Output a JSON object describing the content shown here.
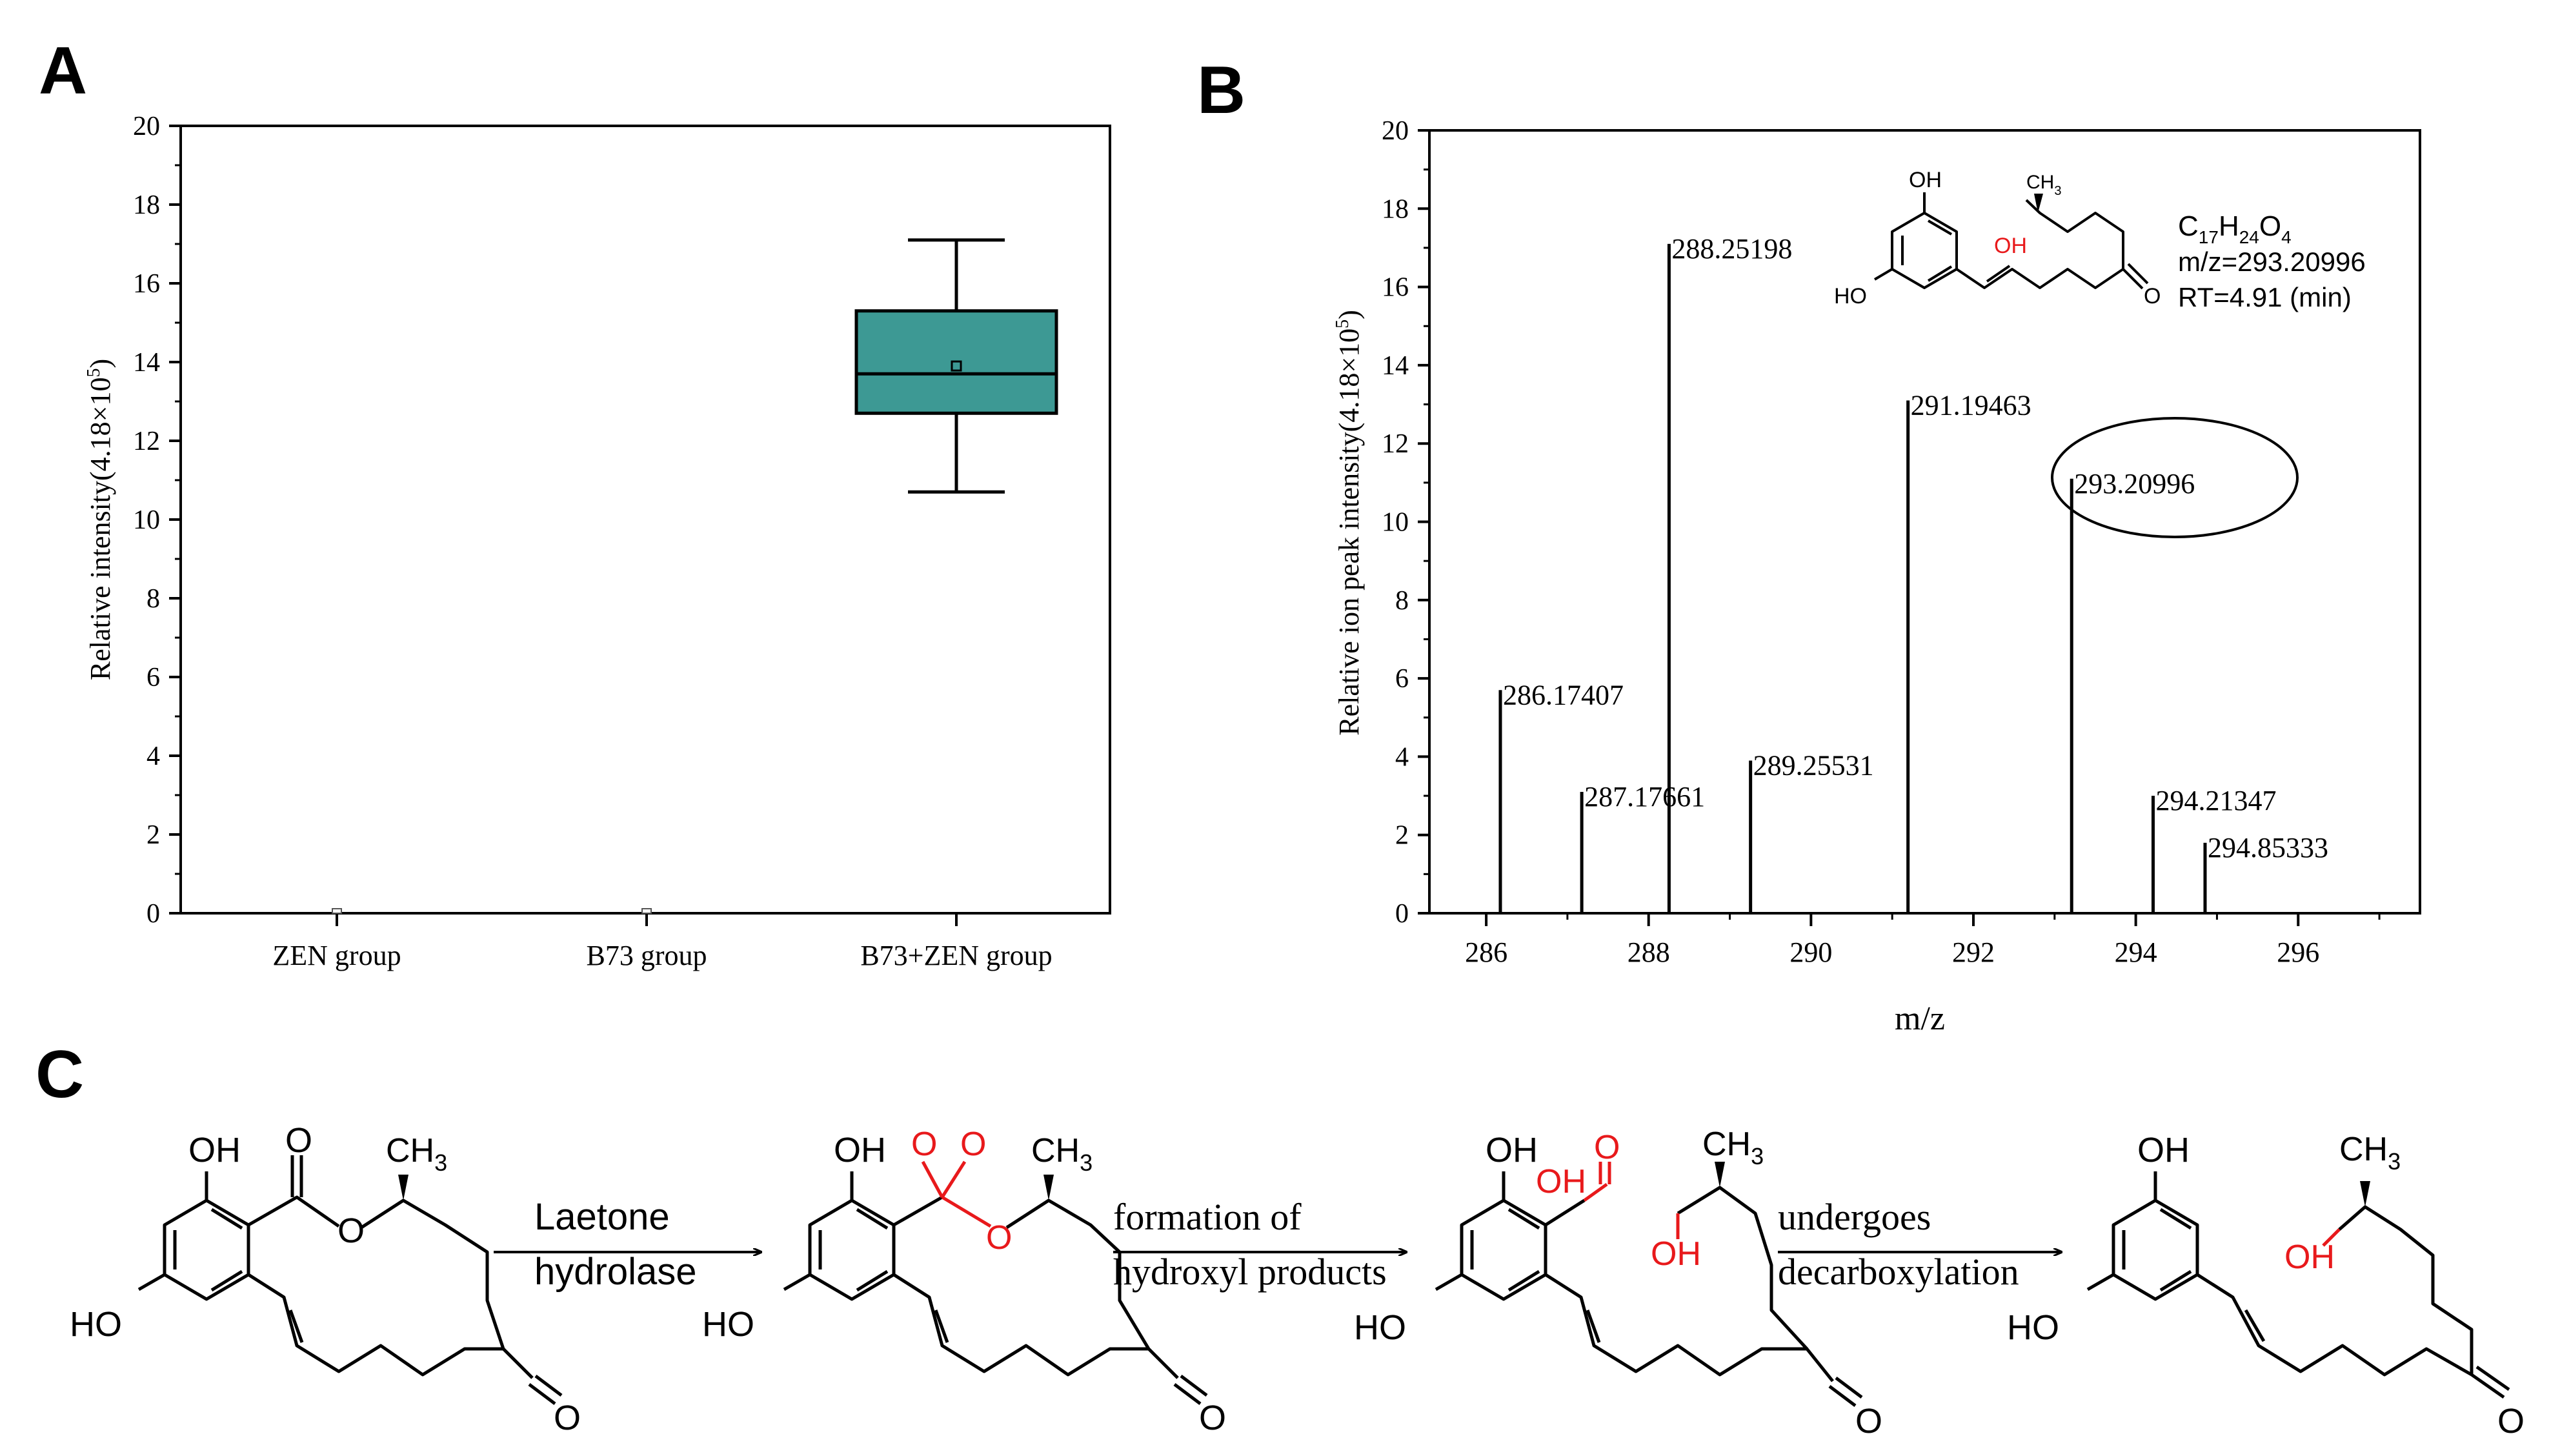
{
  "panels": {
    "a": {
      "letter": "A"
    },
    "b": {
      "letter": "B"
    },
    "c": {
      "letter": "C"
    }
  },
  "colors": {
    "box_fill": "#3d9994",
    "red": "#e8191b",
    "ink": "#000000"
  },
  "chart_data": [
    {
      "type": "box",
      "ylabel_main": "Relative intensity(4.18×10",
      "ylabel_exp": "5",
      "ylabel_tail": ")",
      "ylim": [
        0,
        20
      ],
      "y_ticks": [
        "0",
        "2",
        "4",
        "6",
        "8",
        "10",
        "12",
        "14",
        "16",
        "18",
        "20"
      ],
      "categories": [
        "ZEN group",
        "B73 group",
        "B73+ZEN group"
      ],
      "boxes": [
        {
          "min": 0,
          "q1": 0,
          "median": 0,
          "q3": 0,
          "max": 0,
          "mean": 0
        },
        {
          "min": 0,
          "q1": 0,
          "median": 0,
          "q3": 0,
          "max": 0,
          "mean": 0
        },
        {
          "min": 10.7,
          "q1": 12.7,
          "median": 13.7,
          "q3": 15.3,
          "max": 17.1,
          "mean": 13.9
        }
      ]
    },
    {
      "type": "bar",
      "xlabel": "m/z",
      "ylabel_main": "Relative ion peak intensity(4.18×10",
      "ylabel_exp": "5",
      "ylabel_tail": ")",
      "xlim": [
        285.3,
        297.5
      ],
      "ylim": [
        0,
        20
      ],
      "x_ticks": [
        "286",
        "288",
        "290",
        "292",
        "294",
        "296"
      ],
      "y_ticks": [
        "0",
        "2",
        "4",
        "6",
        "8",
        "10",
        "12",
        "14",
        "16",
        "18",
        "20"
      ],
      "peaks": [
        {
          "mz": 286.17407,
          "intensity": 5.7,
          "label": "286.17407"
        },
        {
          "mz": 287.17661,
          "intensity": 3.1,
          "label": "287.17661"
        },
        {
          "mz": 288.25198,
          "intensity": 17.1,
          "label": "288.25198"
        },
        {
          "mz": 289.25531,
          "intensity": 3.9,
          "label": "289.25531"
        },
        {
          "mz": 291.19463,
          "intensity": 13.1,
          "label": "291.19463"
        },
        {
          "mz": 293.20996,
          "intensity": 11.1,
          "label": "293.20996"
        },
        {
          "mz": 294.21347,
          "intensity": 3.0,
          "label": "294.21347"
        },
        {
          "mz": 294.85333,
          "intensity": 1.8,
          "label": "294.85333"
        }
      ],
      "highlighted_peak": "293.20996",
      "info": {
        "formula_c": "C",
        "formula_c_sub": "17",
        "formula_h": "H",
        "formula_h_sub": "24",
        "formula_o": "O",
        "formula_o_sub": "4",
        "mz_line": "m/z=293.20996",
        "rt_line": "RT=4.91 (min)"
      },
      "structure_labels": {
        "oh_top": "OH",
        "oh_bottom": "HO",
        "oh_red": "OH",
        "ch3": "CH",
        "ch3_sub": "3",
        "ketone": "O"
      }
    }
  ],
  "pathway": {
    "arrows": [
      {
        "top": "Laetone",
        "bottom": "hydrolase"
      },
      {
        "top": "formation of",
        "bottom": "hydroxyl products"
      },
      {
        "top": "undergoes",
        "bottom": "decarboxylation"
      }
    ],
    "molecules": [
      {
        "oh": "OH",
        "ho": "HO",
        "ch3": "CH",
        "ch3_sub": "3",
        "carbonyl_o": "O",
        "ring_o": "O",
        "ketone_o": "O"
      },
      {
        "oh": "OH",
        "ho": "HO",
        "ch3": "CH",
        "ch3_sub": "3",
        "red_o1": "O",
        "red_o2": "O",
        "red_o3": "O",
        "ketone_o": "O"
      },
      {
        "oh": "OH",
        "ho": "HO",
        "ch3": "CH",
        "ch3_sub": "3",
        "red_oh_acid": "OH",
        "red_o_acid": "O",
        "red_oh": "OH",
        "ketone_o": "O"
      },
      {
        "oh": "OH",
        "ho": "HO",
        "ch3": "CH",
        "ch3_sub": "3",
        "red_oh": "OH",
        "ketone_o": "O"
      }
    ]
  }
}
